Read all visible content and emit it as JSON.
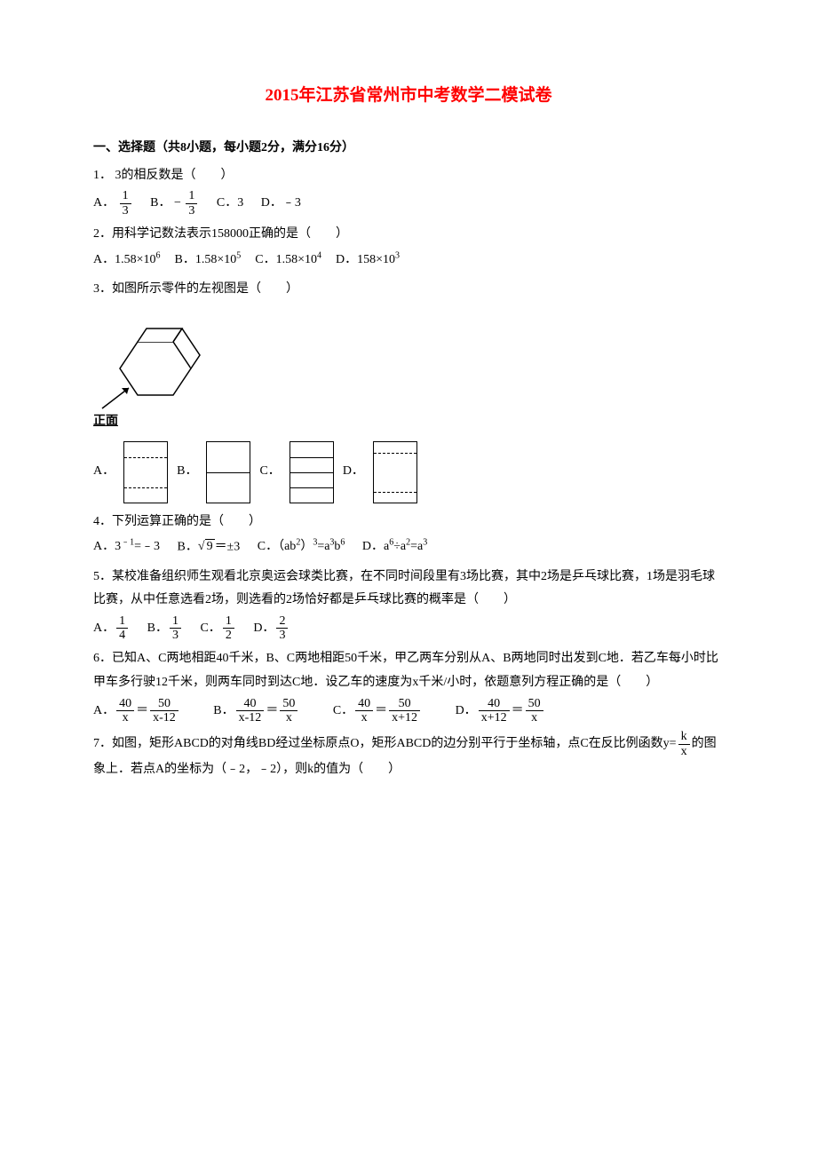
{
  "title": "2015年江苏省常州市中考数学二模试卷",
  "section1": {
    "header": "一、选择题（共8小题，每小题2分，满分16分）",
    "q1": {
      "stem": "1．  3的相反数是（　　）",
      "optA_prefix": "A．",
      "optA_num": "1",
      "optA_den": "3",
      "optB_prefix": "B．",
      "optB_sign": "−",
      "optB_num": "1",
      "optB_den": "3",
      "optC": "C．3",
      "optD": "D．﹣3"
    },
    "q2": {
      "stem": "2．用科学记数法表示158000正确的是（　　）",
      "optA": "A．1.58×10",
      "optA_sup": "6",
      "optB": "B．1.58×10",
      "optB_sup": "5",
      "optC": "C．1.58×10",
      "optC_sup": "4",
      "optD": "D．158×10",
      "optD_sup": "3"
    },
    "q3": {
      "stem": "3．如图所示零件的左视图是（　　）",
      "front_label": "正面",
      "optA": "A．",
      "optB": "B．",
      "optC": "C．",
      "optD": "D．",
      "viewA": {
        "lines": [
          {
            "type": "dash",
            "pos": 17
          },
          {
            "type": "dash",
            "pos": 51
          }
        ]
      },
      "viewB": {
        "lines": [
          {
            "type": "solid",
            "pos": 34
          }
        ]
      },
      "viewC": {
        "lines": [
          {
            "type": "solid",
            "pos": 17
          },
          {
            "type": "solid",
            "pos": 34
          },
          {
            "type": "solid",
            "pos": 51
          }
        ]
      },
      "viewD": {
        "lines": [
          {
            "type": "dash",
            "pos": 12
          },
          {
            "type": "dash",
            "pos": 56
          }
        ]
      }
    },
    "q4": {
      "stem": "4．下列运算正确的是（　　）",
      "optA_pre": "A．3",
      "optA_sup": "﹣1",
      "optA_post": "=﹣3",
      "optB_pre": "B．",
      "optB_sqrt": "9",
      "optB_post": "＝±3",
      "optC_pre": "C．（ab",
      "optC_sup1": "2",
      "optC_mid": "）",
      "optC_sup2": "3",
      "optC_post": "=a",
      "optC_sup3": "3",
      "optC_post2": "b",
      "optC_sup4": "6",
      "optD_pre": "D．a",
      "optD_sup1": "6",
      "optD_mid": "÷a",
      "optD_sup2": "2",
      "optD_post": "=a",
      "optD_sup3": "3"
    },
    "q5": {
      "stem": "5．某校准备组织师生观看北京奥运会球类比赛，在不同时间段里有3场比赛，其中2场是乒乓球比赛，1场是羽毛球比赛，从中任意选看2场，则选看的2场恰好都是乒乓球比赛的概率是（　　）",
      "optA_prefix": "A．",
      "optA_num": "1",
      "optA_den": "4",
      "optB_prefix": "B．",
      "optB_num": "1",
      "optB_den": "3",
      "optC_prefix": "C．",
      "optC_num": "1",
      "optC_den": "2",
      "optD_prefix": "D．",
      "optD_num": "2",
      "optD_den": "3"
    },
    "q6": {
      "stem": "6．已知A、C两地相距40千米，B、C两地相距50千米，甲乙两车分别从A、B两地同时出发到C地．若乙车每小时比甲车多行驶12千米，则两车同时到达C地．设乙车的速度为x千米/小时，依题意列方程正确的是（　　）",
      "optA_prefix": "A．",
      "optA_l_num": "40",
      "optA_l_den": "x",
      "optA_eq": "＝",
      "optA_r_num": "50",
      "optA_r_den": "x-12",
      "optB_prefix": "B．",
      "optB_l_num": "40",
      "optB_l_den": "x-12",
      "optB_eq": "＝",
      "optB_r_num": "50",
      "optB_r_den": "x",
      "optC_prefix": "C．",
      "optC_l_num": "40",
      "optC_l_den": "x",
      "optC_eq": "＝",
      "optC_r_num": "50",
      "optC_r_den": "x+12",
      "optD_prefix": "D．",
      "optD_l_num": "40",
      "optD_l_den": "x+12",
      "optD_eq": "＝",
      "optD_r_num": "50",
      "optD_r_den": "x"
    },
    "q7": {
      "stem_pre": "7．如图，矩形ABCD的对角线BD经过坐标原点O，矩形ABCD的边分别平行于坐标轴，点C在反比例函数y=",
      "frac_num": "k",
      "frac_den": "x",
      "stem_post": "的图象上．若点A的坐标为（﹣2，﹣2），则k的值为（　　）"
    }
  }
}
